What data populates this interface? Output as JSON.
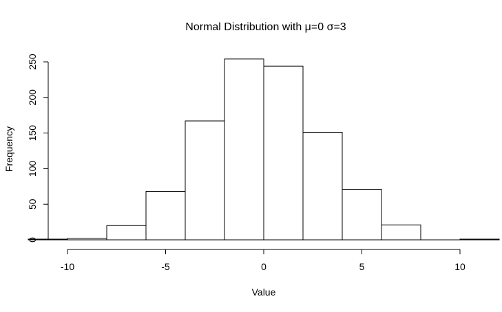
{
  "chart_data": {
    "type": "bar",
    "title": "Normal Distribution with μ=0 σ=3",
    "xlabel": "Value",
    "ylabel": "Frequency",
    "bins": [
      {
        "x0": -12,
        "x1": -10,
        "count": 1
      },
      {
        "x0": -10,
        "x1": -8,
        "count": 2
      },
      {
        "x0": -8,
        "x1": -6,
        "count": 20
      },
      {
        "x0": -6,
        "x1": -4,
        "count": 68
      },
      {
        "x0": -4,
        "x1": -2,
        "count": 167
      },
      {
        "x0": -2,
        "x1": 0,
        "count": 254
      },
      {
        "x0": 0,
        "x1": 2,
        "count": 244
      },
      {
        "x0": 2,
        "x1": 4,
        "count": 151
      },
      {
        "x0": 4,
        "x1": 6,
        "count": 71
      },
      {
        "x0": 6,
        "x1": 8,
        "count": 21
      },
      {
        "x0": 8,
        "x1": 10,
        "count": 0
      },
      {
        "x0": 10,
        "x1": 12,
        "count": 1
      }
    ],
    "xticks": [
      -10,
      -5,
      0,
      5,
      10
    ],
    "yticks": [
      0,
      50,
      100,
      150,
      200,
      250
    ],
    "xlim": [
      -10,
      10
    ],
    "ylim": [
      0,
      250
    ],
    "grid": false
  }
}
